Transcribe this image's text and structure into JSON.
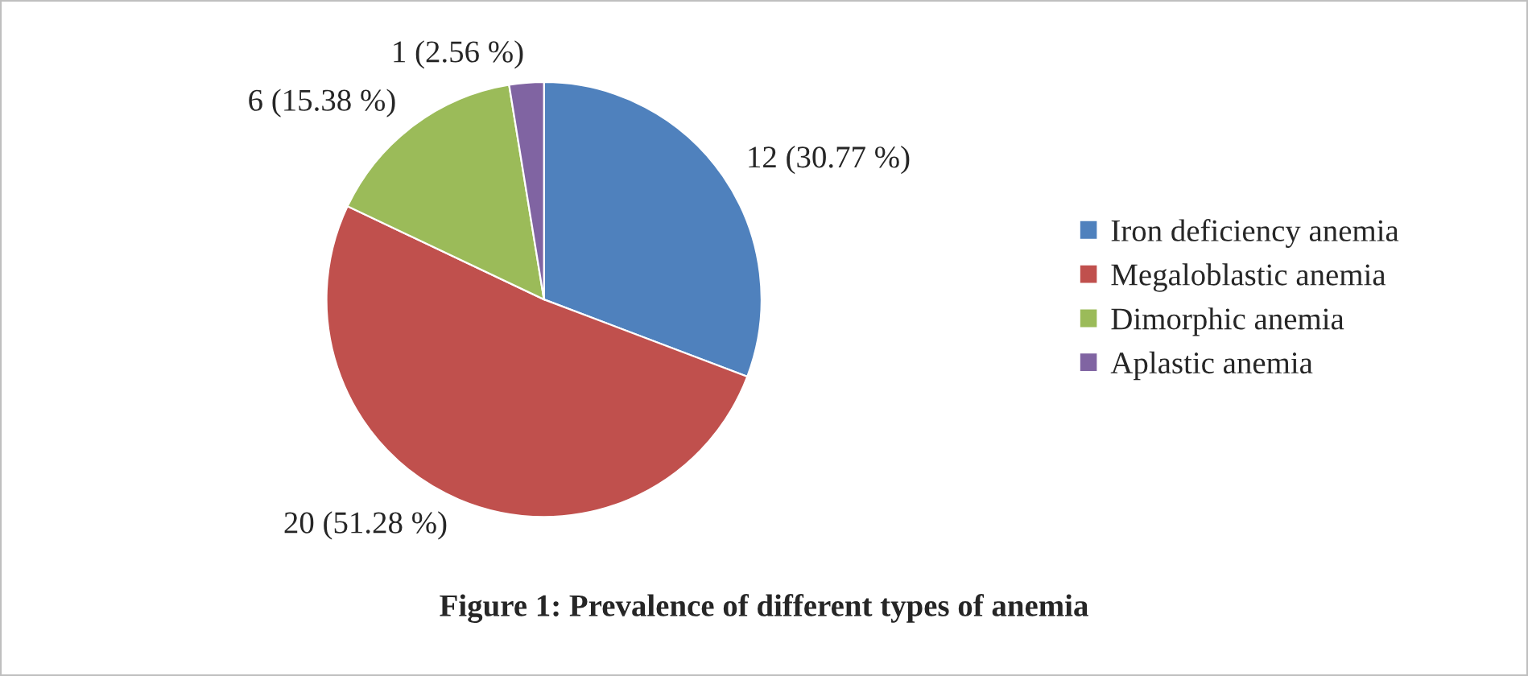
{
  "chart_data": {
    "type": "pie",
    "title": "Figure 1: Prevalence of different types of anemia",
    "categories": [
      "Iron deficiency anemia",
      "Megaloblastic anemia",
      "Dimorphic anemia",
      "Aplastic anemia"
    ],
    "values": [
      12,
      20,
      6,
      1
    ],
    "colors": [
      "#4f81bd",
      "#c0504d",
      "#9bbb59",
      "#8064a2"
    ],
    "value_labels": [
      "12 (30.77 %)",
      "20 (51.28 %)",
      "6 (15.38 %)",
      "1 (2.56 %)"
    ],
    "legend": "right"
  }
}
